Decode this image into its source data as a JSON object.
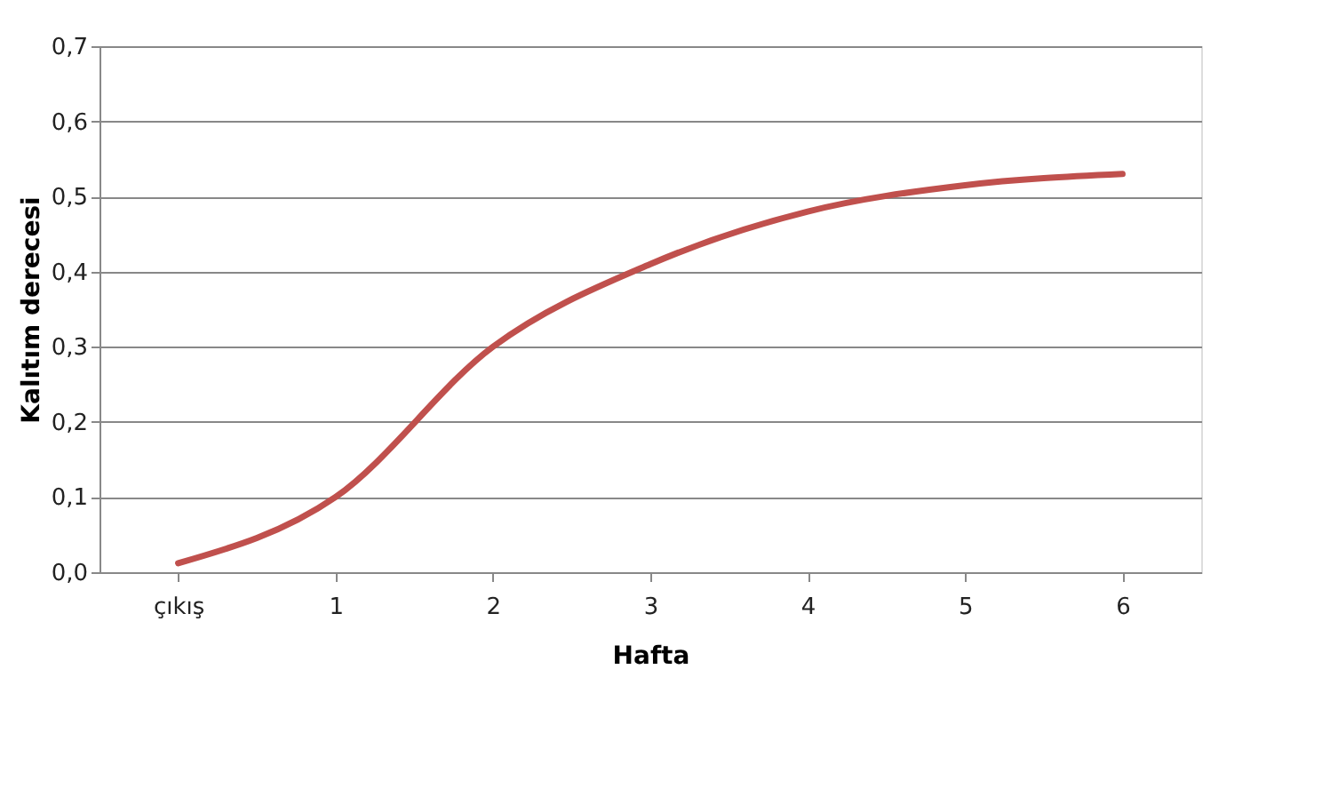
{
  "chart_data": {
    "type": "line",
    "xlabel": "Hafta",
    "ylabel": "Kalıtım derecesi",
    "categories": [
      "çıkış",
      "1",
      "2",
      "3",
      "4",
      "5",
      "6"
    ],
    "series": [
      {
        "color": "#c0504d",
        "values": [
          0.012,
          0.1,
          0.3,
          0.41,
          0.48,
          0.515,
          0.53
        ]
      }
    ],
    "ylim": [
      0,
      0.7
    ],
    "yticks": [
      {
        "value": 0,
        "label": "0,0"
      },
      {
        "value": 0.1,
        "label": "0,1"
      },
      {
        "value": 0.2,
        "label": "0,2"
      },
      {
        "value": 0.3,
        "label": "0,3"
      },
      {
        "value": 0.4,
        "label": "0,4"
      },
      {
        "value": 0.5,
        "label": "0,5"
      },
      {
        "value": 0.6,
        "label": "0,6"
      },
      {
        "value": 0.7,
        "label": "0,7"
      }
    ],
    "grid": "y",
    "marker": "none",
    "line_style": "solid"
  }
}
